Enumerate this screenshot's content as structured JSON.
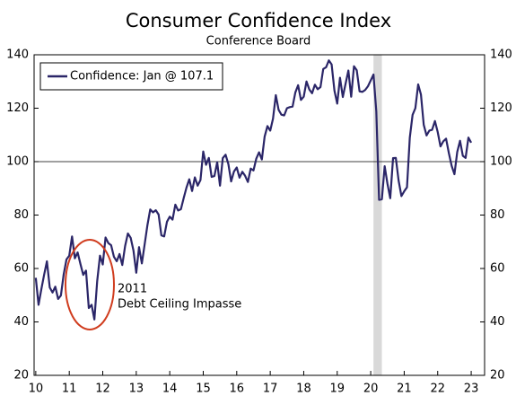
{
  "chart_data": {
    "type": "line",
    "title": "Consumer Confidence Index",
    "subtitle": "Conference Board",
    "annotation": [
      "2011",
      "Debt Ceiling Impasse"
    ],
    "xlim": [
      9.95,
      23.4
    ],
    "xticks": [
      10,
      11,
      12,
      13,
      14,
      15,
      16,
      17,
      18,
      19,
      20,
      21,
      22,
      23
    ],
    "ylim": [
      20,
      140
    ],
    "yticks": [
      20,
      40,
      60,
      80,
      100,
      120,
      140
    ],
    "y2lim": [
      20,
      140
    ],
    "y2ticks": [
      20,
      40,
      60,
      80,
      100,
      120,
      140
    ],
    "reference_line": 100,
    "shaded_band": [
      20.083,
      20.333
    ],
    "legend": "upper left",
    "x": [
      10,
      10.083,
      10.167,
      10.25,
      10.333,
      10.417,
      10.5,
      10.583,
      10.667,
      10.75,
      10.833,
      10.917,
      11,
      11.083,
      11.167,
      11.25,
      11.333,
      11.417,
      11.5,
      11.583,
      11.667,
      11.75,
      11.833,
      11.917,
      12,
      12.083,
      12.167,
      12.25,
      12.333,
      12.417,
      12.5,
      12.583,
      12.667,
      12.75,
      12.833,
      12.917,
      13,
      13.083,
      13.167,
      13.25,
      13.333,
      13.417,
      13.5,
      13.583,
      13.667,
      13.75,
      13.833,
      13.917,
      14,
      14.083,
      14.167,
      14.25,
      14.333,
      14.417,
      14.5,
      14.583,
      14.667,
      14.75,
      14.833,
      14.917,
      15,
      15.083,
      15.167,
      15.25,
      15.333,
      15.417,
      15.5,
      15.583,
      15.667,
      15.75,
      15.833,
      15.917,
      16,
      16.083,
      16.167,
      16.25,
      16.333,
      16.417,
      16.5,
      16.583,
      16.667,
      16.75,
      16.833,
      16.917,
      17,
      17.083,
      17.167,
      17.25,
      17.333,
      17.417,
      17.5,
      17.583,
      17.667,
      17.75,
      17.833,
      17.917,
      18,
      18.083,
      18.167,
      18.25,
      18.333,
      18.417,
      18.5,
      18.583,
      18.667,
      18.75,
      18.833,
      18.917,
      19,
      19.083,
      19.167,
      19.25,
      19.333,
      19.417,
      19.5,
      19.583,
      19.667,
      19.75,
      19.833,
      19.917,
      20,
      20.083,
      20.167,
      20.25,
      20.333,
      20.417,
      20.5,
      20.583,
      20.667,
      20.75,
      20.833,
      20.917,
      21,
      21.083,
      21.167,
      21.25,
      21.333,
      21.417,
      21.5,
      21.583,
      21.667,
      21.75,
      21.833,
      21.917,
      22,
      22.083,
      22.167,
      22.25,
      22.333,
      22.417,
      22.5,
      22.583,
      22.667,
      22.75,
      22.833,
      22.917,
      23
    ],
    "series": [
      {
        "name": "Confidence: Jan @ 107.1",
        "color": "#2b2668",
        "values": [
          56.5,
          46.4,
          52.3,
          57.7,
          62.7,
          52.9,
          51.0,
          53.2,
          48.6,
          49.9,
          57.8,
          63.4,
          64.8,
          72.0,
          63.8,
          66.0,
          61.7,
          57.6,
          59.2,
          45.2,
          46.4,
          40.9,
          55.2,
          64.8,
          61.5,
          71.6,
          69.5,
          68.7,
          64.4,
          62.7,
          65.4,
          61.3,
          68.4,
          73.1,
          71.5,
          66.7,
          58.4,
          68.0,
          61.9,
          69.0,
          76.2,
          82.1,
          81.0,
          81.8,
          80.2,
          72.4,
          72.0,
          77.5,
          79.4,
          78.3,
          83.9,
          81.7,
          82.2,
          86.4,
          90.3,
          93.4,
          89.0,
          94.1,
          91.0,
          93.1,
          103.8,
          98.8,
          101.4,
          94.3,
          94.6,
          99.8,
          91.0,
          101.3,
          102.6,
          99.1,
          92.6,
          96.3,
          97.8,
          94.0,
          96.2,
          94.7,
          92.4,
          97.4,
          96.7,
          101.1,
          103.5,
          100.8,
          109.4,
          113.3,
          111.6,
          116.1,
          124.9,
          119.4,
          117.6,
          117.3,
          120.0,
          120.4,
          120.6,
          125.9,
          128.6,
          123.1,
          124.3,
          130.0,
          127.0,
          125.6,
          128.8,
          127.1,
          127.9,
          134.7,
          135.3,
          137.9,
          136.4,
          126.6,
          121.7,
          131.4,
          124.2,
          129.2,
          134.1,
          124.3,
          135.7,
          134.2,
          126.3,
          126.1,
          126.8,
          128.2,
          130.4,
          132.6,
          118.8,
          85.7,
          85.9,
          98.3,
          91.7,
          86.3,
          101.3,
          101.4,
          92.9,
          87.1,
          88.9,
          90.4,
          109.0,
          117.5,
          120.0,
          128.9,
          125.1,
          113.8,
          109.8,
          111.6,
          111.9,
          115.2,
          111.1,
          105.7,
          107.6,
          108.6,
          103.2,
          98.4,
          95.3,
          103.6,
          107.8,
          102.2,
          101.4,
          109.0,
          107.1
        ]
      }
    ]
  }
}
